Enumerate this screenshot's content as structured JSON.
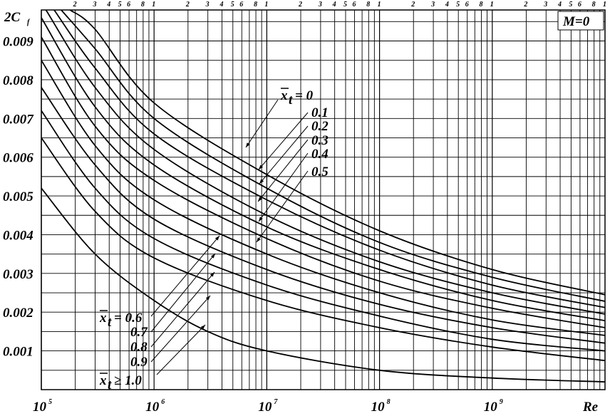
{
  "chart_data": {
    "type": "line",
    "title": "",
    "ylabel": "2C",
    "ylabel_sub": "f",
    "xlabel": "Re",
    "condition_label": "M=0",
    "x_scale": "log",
    "xlim": [
      100000,
      10000000000
    ],
    "ylim": [
      0,
      0.0098
    ],
    "grid": true,
    "y_ticks": [
      "0.001",
      "0.002",
      "0.003",
      "0.004",
      "0.005",
      "0.006",
      "0.007",
      "0.008",
      "0.009"
    ],
    "x_decade_ticks": [
      {
        "base": "10",
        "exp": "5"
      },
      {
        "base": "10",
        "exp": "6"
      },
      {
        "base": "10",
        "exp": "7"
      },
      {
        "base": "10",
        "exp": "8"
      },
      {
        "base": "10",
        "exp": "9"
      }
    ],
    "x_minor_tick_labels": [
      "2",
      "3",
      "4",
      "5",
      "6",
      "8",
      "1"
    ],
    "series": [
      {
        "name": "0",
        "x": [
          180000,
          300000,
          1000000,
          10000000,
          100000000,
          1000000000,
          10000000000
        ],
        "y": [
          0.0098,
          0.0093,
          0.0074,
          0.00555,
          0.0041,
          0.0031,
          0.00245
        ]
      },
      {
        "name": "0.1",
        "x": [
          150000,
          300000,
          1000000,
          10000000,
          100000000,
          1000000000,
          10000000000
        ],
        "y": [
          0.0098,
          0.0088,
          0.007,
          0.0052,
          0.0038,
          0.0029,
          0.00228
        ]
      },
      {
        "name": "0.2",
        "x": [
          130000,
          300000,
          1000000,
          10000000,
          100000000,
          1000000000,
          10000000000
        ],
        "y": [
          0.0098,
          0.0083,
          0.0066,
          0.0049,
          0.0036,
          0.0027,
          0.00212
        ]
      },
      {
        "name": "0.3",
        "x": [
          110000,
          300000,
          1000000,
          10000000,
          100000000,
          1000000000,
          10000000000
        ],
        "y": [
          0.0098,
          0.0078,
          0.0062,
          0.0045,
          0.0033,
          0.0025,
          0.00195
        ]
      },
      {
        "name": "0.4",
        "x": [
          100000,
          300000,
          1000000,
          10000000,
          100000000,
          1000000000,
          10000000000
        ],
        "y": [
          0.0096,
          0.0073,
          0.0058,
          0.0042,
          0.0031,
          0.0023,
          0.00178
        ]
      },
      {
        "name": "0.5",
        "x": [
          100000,
          300000,
          1000000,
          10000000,
          100000000,
          1000000000,
          10000000000
        ],
        "y": [
          0.0091,
          0.0068,
          0.0054,
          0.0039,
          0.0028,
          0.0021,
          0.0016
        ]
      },
      {
        "name": "0.6",
        "x": [
          100000,
          300000,
          1000000,
          10000000,
          100000000,
          1000000000,
          10000000000
        ],
        "y": [
          0.0085,
          0.0063,
          0.0049,
          0.0035,
          0.0025,
          0.0018,
          0.0014
        ]
      },
      {
        "name": "0.7",
        "x": [
          100000,
          300000,
          1000000,
          10000000,
          100000000,
          1000000000,
          10000000000
        ],
        "y": [
          0.0078,
          0.0058,
          0.0044,
          0.0031,
          0.0022,
          0.0016,
          0.0012
        ]
      },
      {
        "name": "0.8",
        "x": [
          100000,
          300000,
          1000000,
          10000000,
          100000000,
          1000000000,
          10000000000
        ],
        "y": [
          0.0072,
          0.0052,
          0.0039,
          0.0027,
          0.0019,
          0.0013,
          0.001
        ]
      },
      {
        "name": "0.9",
        "x": [
          100000,
          300000,
          1000000,
          10000000,
          100000000,
          1000000000,
          10000000000
        ],
        "y": [
          0.0065,
          0.0046,
          0.0034,
          0.0023,
          0.0016,
          0.0011,
          0.00075
        ]
      },
      {
        "name": "1.0",
        "x": [
          100000,
          300000,
          1000000,
          3000000,
          10000000,
          100000000,
          1000000000,
          10000000000
        ],
        "y": [
          0.0052,
          0.0035,
          0.0023,
          0.0015,
          0.001,
          0.0005,
          0.0003,
          0.0002
        ]
      }
    ],
    "annotations": {
      "upper_prefix_x": "x",
      "upper_prefix_sub": "t",
      "upper_prefix_op": "= 0",
      "upper_values": [
        "0.1",
        "0.2",
        "0.3",
        "0.4",
        "0.5"
      ],
      "lower_prefix_x": "x",
      "lower_prefix_sub": "t",
      "lower_prefix_op": "= 0.6",
      "lower_values": [
        "0.7",
        "0.8",
        "0.9"
      ],
      "last_prefix_x": "x",
      "last_prefix_sub": "t",
      "last_prefix_op": "≥ 1.0"
    }
  }
}
